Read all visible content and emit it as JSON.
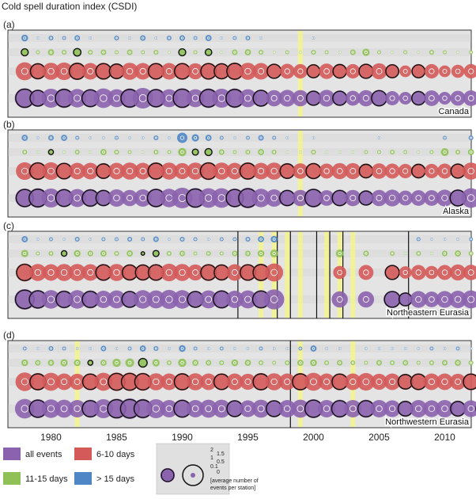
{
  "chart_data": {
    "type": "scatter",
    "title": "Cold spell duration index (CSDI)",
    "x_ticks": [
      1980,
      1985,
      1990,
      1995,
      2000,
      2005,
      2010
    ],
    "xlim": [
      1977,
      2014
    ],
    "series_order": [
      "> 15 days",
      "11-15 days",
      "6-10 days",
      "all events"
    ],
    "colors": {
      "all events": "#8b62ad",
      "6-10 days": "#d45a5a",
      "11-15 days": "#8fc156",
      "> 15 days": "#4f86c6",
      "highlight": "#f4f48c",
      "marker": "#111111"
    },
    "panels": [
      {
        "letter": "(a)",
        "region": "Canada",
        "highlight_years": [
          1999
        ],
        "marker_years": [],
        "gap_years": [],
        "series": {
          "> 15 days": [
            0.6,
            0.1,
            0.3,
            0.2,
            0.4,
            0.1,
            0,
            0.3,
            0.1,
            0.4,
            0.1,
            0.3,
            0.4,
            0.2,
            0.5,
            0.1,
            0.2,
            0.3,
            0.1,
            0,
            0,
            0,
            0.1,
            0,
            0,
            0,
            0,
            0,
            0,
            0,
            0,
            0,
            0,
            0,
            0,
            0
          ],
          "11-15 days": [
            0.8,
            0.2,
            0.5,
            0.3,
            0.9,
            0.3,
            0.4,
            0.2,
            0.4,
            0.2,
            0.3,
            0.1,
            0.8,
            0.2,
            0.7,
            0.1,
            0.4,
            0.5,
            0.3,
            0.1,
            0.2,
            0.1,
            0.3,
            0.2,
            0.1,
            0.4,
            0.7,
            0.2,
            0.1,
            0.2,
            0.1,
            0.3,
            0.2,
            0.1,
            0.2,
            0.1
          ],
          "6-10 days": [
            1.9,
            1.6,
            1.7,
            1.8,
            1.8,
            1.6,
            1.7,
            1.5,
            1.7,
            1.6,
            1.7,
            1.6,
            1.7,
            1.5,
            1.7,
            1.6,
            1.8,
            1.7,
            1.6,
            1.4,
            1.3,
            1.2,
            1.2,
            1.4,
            1.3,
            1.2,
            1.4,
            1.5,
            1.2,
            0.8,
            1.2,
            1.2,
            0.8,
            1.0,
            1.2,
            1.0
          ],
          "all events": [
            2.0,
            1.5,
            1.8,
            1.9,
            1.7,
            1.7,
            1.9,
            1.6,
            1.9,
            2.1,
            1.8,
            1.6,
            2.0,
            1.6,
            1.9,
            1.8,
            1.9,
            1.6,
            1.5,
            1.3,
            1.4,
            1.3,
            1.2,
            1.4,
            1.2,
            1.1,
            1.3,
            1.4,
            1.0,
            0.8,
            1.1,
            1.2,
            0.8,
            1.1,
            1.2,
            1.1
          ]
        },
        "bold_rings": {
          "11-15 days": [
            0,
            4,
            12,
            14
          ],
          "6-10 days": [
            1,
            4,
            6,
            7,
            10,
            12,
            14,
            15,
            16,
            19,
            22,
            24,
            26,
            28,
            30
          ],
          "all events": [
            0,
            1,
            3,
            5,
            8,
            10,
            12,
            14,
            16,
            18,
            22,
            24,
            27,
            30
          ]
        }
      },
      {
        "letter": "(b)",
        "region": "Alaska",
        "highlight_years": [
          1999
        ],
        "marker_years": [],
        "gap_years": [],
        "series": {
          "> 15 days": [
            0.5,
            0.1,
            0.4,
            0.5,
            0.2,
            0.1,
            0.1,
            0.2,
            0.1,
            0.1,
            0.3,
            0.1,
            1.4,
            0.7,
            0.5,
            0.2,
            0.1,
            0.2,
            0.4,
            0.2,
            0.1,
            0,
            0.1,
            0,
            0,
            0,
            0,
            0.1,
            0,
            0,
            0,
            0,
            0.2,
            0,
            0.3,
            0
          ],
          "11-15 days": [
            0.3,
            0.1,
            0.4,
            0.1,
            0.3,
            0.1,
            0.5,
            0.3,
            0.2,
            0.1,
            0.3,
            0.2,
            0.9,
            0.6,
            0.8,
            0.4,
            0.2,
            0.3,
            0.5,
            0.3,
            0.1,
            0.1,
            0.3,
            0.1,
            0.1,
            0.1,
            0.2,
            0.2,
            0.3,
            0.2,
            0.1,
            0.2,
            0.8,
            0.3,
            0.5,
            0.2
          ],
          "6-10 days": [
            1.8,
            1.9,
            1.8,
            1.7,
            1.6,
            1.6,
            1.5,
            1.6,
            1.7,
            1.6,
            1.8,
            1.7,
            1.5,
            1.7,
            1.9,
            1.7,
            1.6,
            1.8,
            1.6,
            1.7,
            1.5,
            1.4,
            1.6,
            1.3,
            1.5,
            1.5,
            1.3,
            1.4,
            1.3,
            1.2,
            1.3,
            1.2,
            1.3,
            1.4,
            1.7,
            1.3
          ],
          "all events": [
            1.8,
            1.9,
            1.8,
            1.7,
            1.6,
            1.6,
            1.4,
            1.5,
            1.3,
            1.5,
            1.8,
            1.7,
            2.1,
            2.0,
            1.9,
            1.9,
            1.8,
            2.1,
            1.7,
            1.5,
            1.4,
            1.3,
            1.8,
            1.2,
            1.4,
            1.3,
            1.2,
            1.3,
            1.4,
            1.1,
            1.2,
            1.2,
            1.4,
            1.5,
            1.9,
            1.2
          ]
        },
        "bold_rings": {
          "11-15 days": [
            2,
            13,
            14
          ],
          "6-10 days": [
            1,
            3,
            6,
            10,
            14,
            17,
            20,
            22,
            26,
            30,
            33
          ],
          "all events": [
            0,
            1,
            3,
            5,
            6,
            10,
            13,
            16,
            17,
            20,
            22,
            24,
            26,
            33
          ]
        }
      },
      {
        "letter": "(c)",
        "region": "Northeastern Eurasia",
        "highlight_years": [
          1996,
          1997,
          1998,
          1999,
          2001,
          2002,
          2003
        ],
        "marker_years": [
          1994,
          1997,
          1998,
          2000,
          2001,
          2002,
          2007
        ],
        "gap_years": [
          1995,
          1996,
          1997,
          1998,
          1999,
          2001,
          2003
        ],
        "series": {
          "> 15 days": [
            0.5,
            0.1,
            0.2,
            0.1,
            0.3,
            0.1,
            0.2,
            0.2,
            0.3,
            0.2,
            0.4,
            0.1,
            0.3,
            0.2,
            0.1,
            0.2,
            0.2,
            0.3,
            0.5,
            0.6,
            0,
            0,
            0,
            0,
            0,
            0,
            0,
            0,
            0,
            0,
            0.2,
            0.1,
            0.1,
            0.1,
            0.2,
            0.1
          ],
          "11-15 days": [
            0.7,
            0.2,
            0.3,
            0.5,
            0.6,
            0.4,
            0.5,
            0.3,
            0.5,
            0.2,
            0.6,
            0.3,
            0.4,
            0.2,
            0.3,
            0.2,
            0.4,
            0.4,
            0.6,
            0.8,
            0,
            0,
            0,
            0,
            0.8,
            0,
            0.4,
            0,
            0.3,
            0.1,
            0.3,
            0.1,
            0.4,
            0.5,
            0.3,
            0.2
          ],
          "6-10 days": [
            1.9,
            1.7,
            1.6,
            1.7,
            1.7,
            1.6,
            1.7,
            1.7,
            1.6,
            1.6,
            1.7,
            1.8,
            1.7,
            1.5,
            1.7,
            1.6,
            1.6,
            1.7,
            1.8,
            1.9,
            0,
            0,
            0,
            0,
            1.0,
            0,
            1.3,
            0,
            1.4,
            0.9,
            1.3,
            1.0,
            1.3,
            1.5,
            1.4,
            1.0
          ],
          "all events": [
            2.1,
            1.8,
            1.7,
            1.6,
            1.7,
            1.6,
            1.5,
            1.6,
            1.5,
            1.7,
            1.6,
            1.8,
            1.7,
            1.5,
            1.6,
            1.7,
            1.5,
            1.6,
            1.7,
            2.0,
            0,
            0,
            0,
            0,
            1.3,
            0,
            1.3,
            0,
            1.5,
            1.0,
            1.4,
            1.2,
            1.4,
            1.5,
            1.6,
            1.3
          ]
        },
        "bold_rings": {
          "11-15 days": [
            3,
            9,
            10
          ],
          "6-10 days": [
            0,
            6,
            8,
            9,
            10,
            14,
            15,
            17,
            18,
            28
          ],
          "all events": [
            0,
            1,
            3,
            5,
            8,
            13,
            15,
            18,
            28,
            29
          ]
        }
      },
      {
        "letter": "(d)",
        "region": "Northwestern Eurasia",
        "highlight_years": [
          1982,
          1999,
          2003
        ],
        "marker_years": [
          1998
        ],
        "gap_years": [],
        "series": {
          "> 15 days": [
            0.2,
            0.1,
            0.3,
            0.2,
            0.1,
            0.1,
            0.4,
            0.1,
            0.2,
            0.5,
            0.3,
            0.1,
            0.6,
            0.2,
            0.1,
            0.2,
            0.1,
            0.1,
            0.2,
            0.1,
            0.1,
            0.2,
            0.5,
            0.1,
            0.1,
            0,
            0.1,
            0.1,
            0.1,
            0.1,
            0.1,
            0.2,
            0.1,
            0.2,
            0.1,
            0.1
          ],
          "11-15 days": [
            0.6,
            0.4,
            0.5,
            0.7,
            0.6,
            0.4,
            0.5,
            0.9,
            1.0,
            1.2,
            0.7,
            0.3,
            0.9,
            0.5,
            0.4,
            0.3,
            0.6,
            0.5,
            0.3,
            0.2,
            0.3,
            0.5,
            0.6,
            0.3,
            0.4,
            0.3,
            0.2,
            0.4,
            0.3,
            0.4,
            0.2,
            0.3,
            0.4,
            0.5,
            0.3,
            0.4
          ],
          "6-10 days": [
            2.0,
            1.8,
            1.9,
            1.6,
            1.5,
            1.7,
            1.9,
            2.0,
            2.0,
            1.9,
            1.7,
            1.6,
            1.8,
            1.7,
            1.6,
            1.7,
            1.6,
            1.5,
            1.8,
            1.7,
            1.6,
            1.8,
            1.9,
            1.6,
            1.7,
            1.6,
            1.8,
            1.5,
            1.6,
            1.5,
            1.7,
            1.6,
            1.6,
            1.5,
            1.7,
            1.7
          ],
          "all events": [
            1.9,
            1.8,
            1.7,
            1.6,
            1.5,
            1.6,
            1.8,
            2.0,
            2.1,
            1.9,
            1.8,
            1.5,
            1.7,
            1.5,
            1.6,
            1.6,
            1.5,
            1.4,
            1.6,
            1.5,
            1.5,
            1.6,
            1.8,
            1.5,
            1.6,
            1.5,
            1.6,
            1.5,
            1.4,
            1.3,
            1.5,
            1.4,
            1.5,
            1.3,
            1.4,
            1.6
          ]
        },
        "bold_rings": {
          "11-15 days": [
            5,
            9
          ],
          "6-10 days": [
            1,
            5,
            7,
            8,
            9,
            12,
            15,
            18,
            21,
            24,
            29,
            30,
            34
          ],
          "all events": [
            1,
            5,
            7,
            8,
            9,
            12,
            16,
            19,
            22,
            24,
            26,
            29,
            33,
            35
          ]
        }
      }
    ],
    "legend": {
      "entries": [
        "all events",
        "6-10 days",
        "11-15 days",
        "> 15 days"
      ],
      "size_scale_labels": [
        "2",
        "1.5",
        "1",
        "0.5",
        "0.1",
        "0"
      ],
      "size_scale_caption": "[average number of events per station]"
    },
    "grid": true
  }
}
